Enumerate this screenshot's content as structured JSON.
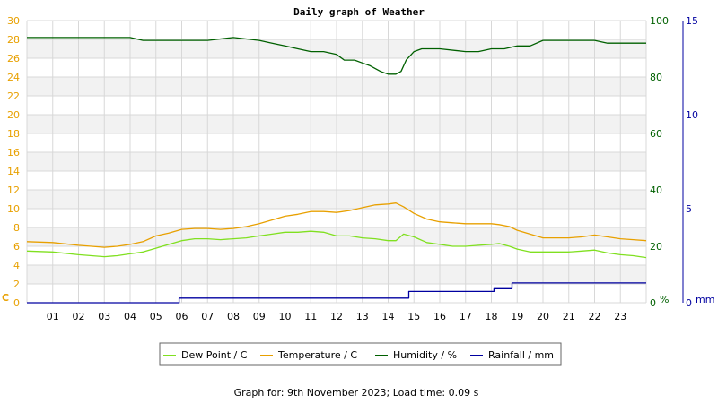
{
  "chart_data": {
    "type": "line",
    "title": "Daily graph of Weather",
    "footer": "Graph for: 9th November 2023; Load time: 0.09 s",
    "x_ticks": [
      "01",
      "02",
      "03",
      "04",
      "05",
      "06",
      "07",
      "08",
      "09",
      "10",
      "11",
      "12",
      "13",
      "14",
      "15",
      "16",
      "17",
      "18",
      "19",
      "20",
      "21",
      "22",
      "23"
    ],
    "xlim": [
      0,
      24
    ],
    "axes": {
      "temp": {
        "label": "C",
        "ylim": [
          0,
          30
        ],
        "ticks": [
          0,
          2,
          4,
          6,
          8,
          10,
          12,
          14,
          16,
          18,
          20,
          22,
          24,
          26,
          28,
          30
        ],
        "color": "#e8a000"
      },
      "humidity": {
        "label": "%",
        "ylim": [
          0,
          100
        ],
        "ticks": [
          0,
          20,
          40,
          60,
          80,
          100
        ],
        "color": "#006000"
      },
      "rain": {
        "label": "mm",
        "ylim": [
          0,
          15
        ],
        "ticks": [
          0,
          5,
          10,
          15
        ],
        "color": "#0000a0"
      }
    },
    "grid": true,
    "legend_position": "bottom",
    "series": [
      {
        "name": "Dew Point / C",
        "axis": "temp",
        "color": "#80e020",
        "x": [
          0,
          1,
          2,
          2.5,
          3,
          3.5,
          4,
          4.5,
          5,
          5.5,
          6,
          6.5,
          7,
          7.5,
          8,
          8.5,
          9,
          9.5,
          10,
          10.5,
          11,
          11.5,
          12,
          12.5,
          13,
          13.5,
          14,
          14.3,
          14.6,
          15,
          15.5,
          16,
          16.5,
          17,
          17.5,
          18,
          18.3,
          18.7,
          19,
          19.5,
          20,
          20.5,
          21,
          21.5,
          22,
          22.5,
          23,
          23.5,
          24
        ],
        "values": [
          5.5,
          5.4,
          5.1,
          5.0,
          4.9,
          5.0,
          5.2,
          5.4,
          5.8,
          6.2,
          6.6,
          6.8,
          6.8,
          6.7,
          6.8,
          6.9,
          7.1,
          7.3,
          7.5,
          7.5,
          7.6,
          7.5,
          7.1,
          7.1,
          6.9,
          6.8,
          6.6,
          6.6,
          7.3,
          7.0,
          6.4,
          6.2,
          6.0,
          6.0,
          6.1,
          6.2,
          6.3,
          6.0,
          5.7,
          5.4,
          5.4,
          5.4,
          5.4,
          5.5,
          5.6,
          5.3,
          5.1,
          5.0,
          4.8
        ]
      },
      {
        "name": "Temperature / C",
        "axis": "temp",
        "color": "#e8a000",
        "x": [
          0,
          1,
          2,
          2.5,
          3,
          3.5,
          4,
          4.5,
          5,
          5.5,
          6,
          6.5,
          7,
          7.5,
          8,
          8.5,
          9,
          9.5,
          10,
          10.5,
          11,
          11.5,
          12,
          12.5,
          13,
          13.5,
          14,
          14.3,
          14.6,
          15,
          15.5,
          16,
          16.5,
          17,
          17.5,
          18,
          18.3,
          18.7,
          19,
          19.5,
          20,
          20.5,
          21,
          21.5,
          22,
          22.5,
          23,
          23.5,
          24
        ],
        "values": [
          6.5,
          6.4,
          6.1,
          6.0,
          5.9,
          6.0,
          6.2,
          6.5,
          7.1,
          7.4,
          7.8,
          7.9,
          7.9,
          7.8,
          7.9,
          8.1,
          8.4,
          8.8,
          9.2,
          9.4,
          9.7,
          9.7,
          9.6,
          9.8,
          10.1,
          10.4,
          10.5,
          10.6,
          10.2,
          9.5,
          8.9,
          8.6,
          8.5,
          8.4,
          8.4,
          8.4,
          8.3,
          8.1,
          7.7,
          7.3,
          6.9,
          6.9,
          6.9,
          7.0,
          7.2,
          7.0,
          6.8,
          6.7,
          6.6
        ]
      },
      {
        "name": "Humidity / %",
        "axis": "humidity",
        "color": "#006000",
        "x": [
          0,
          0.5,
          1,
          2,
          3,
          4,
          4.5,
          5,
          6,
          7,
          8,
          9,
          9.5,
          10,
          10.5,
          11,
          11.5,
          12,
          12.3,
          12.7,
          13,
          13.3,
          13.7,
          14,
          14.3,
          14.5,
          14.7,
          15,
          15.3,
          16,
          17,
          17.5,
          18,
          18.5,
          19,
          19.5,
          20,
          21,
          21.5,
          22,
          22.5,
          23,
          24
        ],
        "values": [
          94,
          94,
          94,
          94,
          94,
          94,
          93,
          93,
          93,
          93,
          94,
          93,
          92,
          91,
          90,
          89,
          89,
          88,
          86,
          86,
          85,
          84,
          82,
          81,
          81,
          82,
          86,
          89,
          90,
          90,
          89,
          89,
          90,
          90,
          91,
          91,
          93,
          93,
          93,
          93,
          92,
          92,
          92
        ]
      },
      {
        "name": "Rainfall / mm",
        "axis": "rain",
        "color": "#0000a0",
        "x": [
          0,
          5.9,
          5.9,
          14.8,
          14.8,
          18.1,
          18.1,
          18.8,
          18.8,
          24
        ],
        "values": [
          0,
          0,
          0.25,
          0.25,
          0.6,
          0.6,
          0.75,
          0.75,
          1.05,
          1.05
        ]
      }
    ]
  }
}
